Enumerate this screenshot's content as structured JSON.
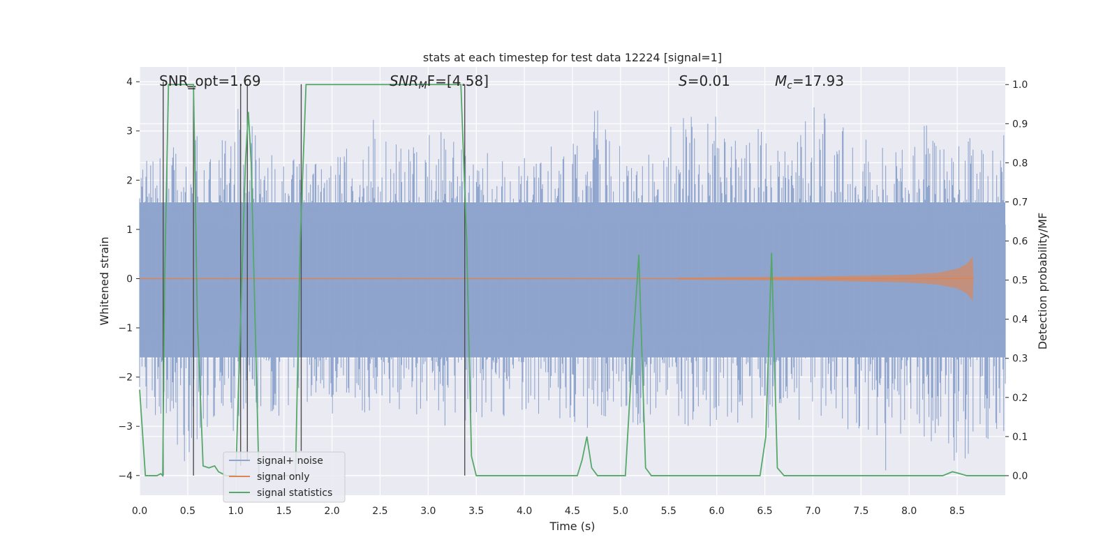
{
  "chart_data": {
    "type": "line",
    "title": "stats at each timestep for test data 12224 [signal=1]",
    "xlabel": "Time (s)",
    "ylabel": "Whitened strain",
    "y2label": "Detection probability/MF",
    "xlim": [
      0.0,
      9.0
    ],
    "ylim": [
      -4.4,
      4.3
    ],
    "y2lim": [
      -0.05,
      1.045
    ],
    "xticks": [
      "0.0",
      "0.5",
      "1.0",
      "1.5",
      "2.0",
      "2.5",
      "3.0",
      "3.5",
      "4.0",
      "4.5",
      "5.0",
      "5.5",
      "6.0",
      "6.5",
      "7.0",
      "7.5",
      "8.0",
      "8.5"
    ],
    "yticks": [
      "4",
      "3",
      "2",
      "1",
      "0",
      "−1",
      "−2",
      "−3",
      "−4"
    ],
    "y2ticks": [
      "1.0",
      "0.9",
      "0.8",
      "0.7",
      "0.6",
      "0.5",
      "0.4",
      "0.3",
      "0.2",
      "0.1",
      "0.0"
    ],
    "grid": true,
    "legend_position": "lower-left",
    "annotations": {
      "snr_opt": "SNR_opt=1.69",
      "snr_mf_italic": "SNR",
      "snr_mf_sub": "M",
      "snr_mf_rest": "F=[4.58]",
      "s_italic": "S",
      "s_rest": "=0.01",
      "mc_italic": "M",
      "mc_sub": "c",
      "mc_rest": "=17.93"
    },
    "colors": {
      "noise": "#8fa5cd",
      "signal_only": "#dd8452",
      "statistics": "#55a868",
      "background": "#eaeaf2",
      "grid": "#ffffff",
      "vlines": "#4c4c4c"
    },
    "series": [
      {
        "name": "signal+ noise",
        "axis": "left",
        "envelope": [
          [
            0.0,
            2.8,
            -2.6
          ],
          [
            0.25,
            2.5,
            -2.9
          ],
          [
            0.5,
            3.3,
            -4.0
          ],
          [
            0.75,
            2.4,
            -2.8
          ],
          [
            1.0,
            3.6,
            -3.2
          ],
          [
            1.25,
            2.9,
            -2.9
          ],
          [
            1.5,
            2.4,
            -3.6
          ],
          [
            1.75,
            2.5,
            -2.7
          ],
          [
            2.0,
            2.8,
            -3.0
          ],
          [
            2.25,
            2.6,
            -2.5
          ],
          [
            2.5,
            3.5,
            -3.3
          ],
          [
            2.75,
            2.6,
            -2.6
          ],
          [
            3.0,
            2.9,
            -3.2
          ],
          [
            3.25,
            3.5,
            -2.9
          ],
          [
            3.5,
            2.8,
            -3.1
          ],
          [
            3.75,
            2.4,
            -2.9
          ],
          [
            4.0,
            2.5,
            -3.1
          ],
          [
            4.25,
            2.7,
            -2.6
          ],
          [
            4.5,
            3.0,
            -3.1
          ],
          [
            4.75,
            3.5,
            -3.3
          ],
          [
            5.0,
            2.7,
            -2.8
          ],
          [
            5.25,
            2.6,
            -3.2
          ],
          [
            5.5,
            3.1,
            -3.0
          ],
          [
            5.75,
            3.4,
            -3.0
          ],
          [
            6.0,
            3.3,
            -3.2
          ],
          [
            6.25,
            2.8,
            -2.9
          ],
          [
            6.5,
            3.3,
            -3.1
          ],
          [
            6.75,
            2.8,
            -2.7
          ],
          [
            7.0,
            3.5,
            -3.2
          ],
          [
            7.25,
            3.5,
            -2.8
          ],
          [
            7.5,
            3.3,
            -3.4
          ],
          [
            7.75,
            2.6,
            -4.0
          ],
          [
            8.0,
            3.1,
            -3.0
          ],
          [
            8.25,
            3.2,
            -3.4
          ],
          [
            8.5,
            2.7,
            -3.8
          ],
          [
            8.75,
            3.0,
            -3.6
          ],
          [
            9.0,
            3.0,
            -3.2
          ]
        ]
      },
      {
        "name": "signal only",
        "axis": "left",
        "envelope_x": [
          5.6,
          7.0,
          8.0,
          8.3,
          8.5,
          8.6,
          8.66,
          8.67
        ],
        "envelope_amp": [
          0.02,
          0.04,
          0.08,
          0.12,
          0.2,
          0.3,
          0.45,
          0.0
        ]
      },
      {
        "name": "signal statistics",
        "axis": "right",
        "x": [
          0.0,
          0.06,
          0.18,
          0.22,
          0.24,
          0.26,
          0.3,
          0.56,
          0.6,
          0.66,
          0.72,
          0.78,
          0.82,
          0.9,
          1.0,
          1.1,
          1.13,
          1.16,
          1.24,
          1.3,
          1.62,
          1.67,
          1.73,
          3.34,
          3.4,
          3.45,
          3.5,
          3.75,
          4.0,
          4.55,
          4.6,
          4.65,
          4.7,
          4.76,
          5.05,
          5.12,
          5.19,
          5.26,
          5.32,
          6.45,
          6.51,
          6.57,
          6.63,
          6.7,
          8.35,
          8.45,
          8.5,
          8.6,
          8.7,
          9.0
        ],
        "y": [
          0.22,
          0.0,
          0.0,
          0.005,
          0.0,
          0.5,
          1.0,
          1.0,
          0.4,
          0.025,
          0.02,
          0.025,
          0.01,
          0.0,
          0.0,
          0.8,
          0.93,
          0.8,
          0.0,
          0.0,
          0.0,
          0.6,
          1.0,
          1.0,
          0.6,
          0.05,
          0.0,
          0.0,
          0.0,
          0.0,
          0.04,
          0.1,
          0.02,
          0.0,
          0.0,
          0.3,
          0.565,
          0.02,
          0.0,
          0.0,
          0.1,
          0.57,
          0.02,
          0.0,
          0.0,
          0.01,
          0.007,
          0.0,
          0.0,
          0.0
        ]
      }
    ],
    "vertical_lines": [
      {
        "x": 0.245,
        "y_top": 4.0,
        "y_bottom": -4.0
      },
      {
        "x": 0.56,
        "y_top": 3.85,
        "y_bottom": -4.0
      },
      {
        "x": 1.05,
        "y_top": 3.95,
        "y_bottom": -3.8
      },
      {
        "x": 1.12,
        "y_top": 3.95,
        "y_bottom": -3.7
      },
      {
        "x": 1.68,
        "y_top": 3.95,
        "y_bottom": -3.5
      },
      {
        "x": 3.38,
        "y_top": 3.95,
        "y_bottom": -4.0
      }
    ],
    "marker": {
      "x": 0.54,
      "y": 3.9
    }
  },
  "legend": {
    "items": [
      {
        "label": "signal+ noise",
        "color": "#8fa5cd"
      },
      {
        "label": "signal only",
        "color": "#dd8452"
      },
      {
        "label": "signal statistics",
        "color": "#55a868"
      }
    ]
  }
}
